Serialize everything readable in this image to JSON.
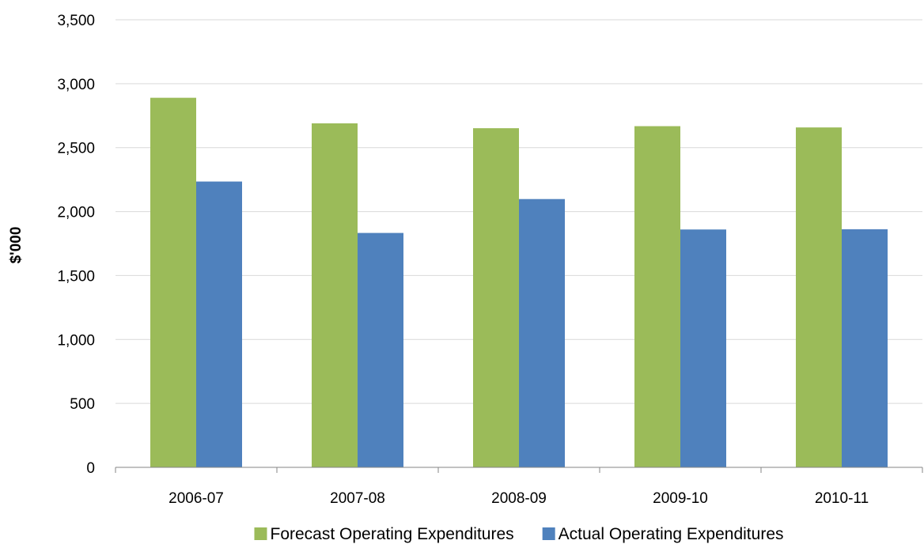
{
  "chart_data": {
    "type": "bar",
    "title": "",
    "xlabel": "",
    "ylabel": "$'000",
    "ylim": [
      0,
      3500
    ],
    "ytick_step": 500,
    "ytick_labels": [
      "0",
      "500",
      "1,000",
      "1,500",
      "2,000",
      "2,500",
      "3,000",
      "3,500"
    ],
    "categories": [
      "2006-07",
      "2007-08",
      "2008-09",
      "2009-10",
      "2010-11"
    ],
    "series": [
      {
        "name": "Forecast Operating Expenditures",
        "color": "#9BBB59",
        "values": [
          2890,
          2690,
          2652,
          2668,
          2658
        ]
      },
      {
        "name": "Actual Operating Expenditures",
        "color": "#4F81BD",
        "values": [
          2235,
          1833,
          2098,
          1860,
          1862
        ]
      }
    ],
    "grid": true,
    "legend": "bottom"
  }
}
